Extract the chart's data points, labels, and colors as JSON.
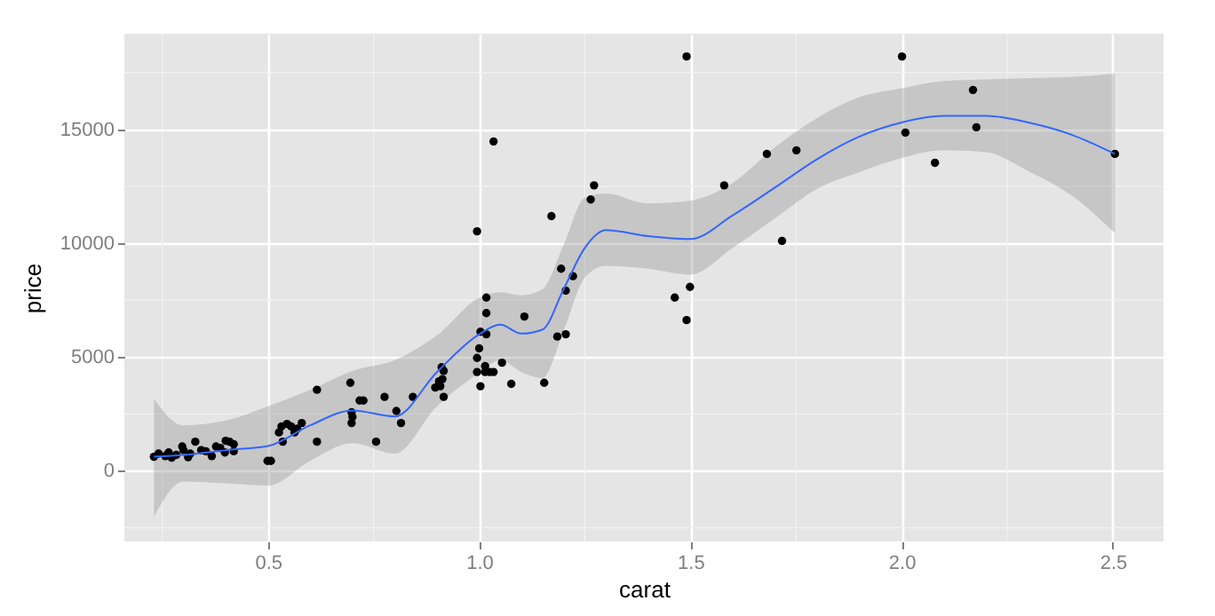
{
  "chart_data": {
    "type": "scatter",
    "xlabel": "carat",
    "ylabel": "price",
    "xlim": [
      0.16,
      2.62
    ],
    "ylim": [
      -3100,
      19200
    ],
    "xticks": [
      0.5,
      {
        "value": 1,
        "label": "1.0"
      },
      1.5,
      {
        "value": 2,
        "label": "2.0"
      },
      2.5
    ],
    "yticks": [
      0,
      5000,
      10000,
      15000
    ],
    "grid": true,
    "marker": "circle",
    "series": [
      {
        "color": "#000000",
        "x": [
          0.23,
          0.241,
          0.257,
          0.265,
          0.272,
          0.283,
          0.297,
          0.3,
          0.311,
          0.316,
          0.328,
          0.342,
          0.353,
          0.367,
          0.377,
          0.387,
          0.398,
          0.4,
          0.409,
          0.419,
          0.419,
          0.499,
          0.507,
          0.526,
          0.535,
          0.532,
          0.545,
          0.555,
          0.563,
          0.569,
          0.58,
          0.616,
          0.616,
          0.695,
          0.698,
          0.7,
          0.698,
          0.717,
          0.726,
          0.756,
          0.776,
          0.804,
          0.815,
          0.843,
          0.896,
          0.905,
          0.911,
          0.916,
          0.913,
          0.916,
          0.908,
          0.995,
          0.995,
          1.0,
          1.003,
          1.003,
          1.014,
          1.017,
          1.017,
          1.017,
          1.014,
          1.025,
          1.034,
          1.054,
          1.076,
          1.107,
          0.995,
          1.034,
          1.171,
          1.264,
          1.272,
          1.194,
          1.205,
          1.222,
          1.185,
          1.205,
          1.154,
          1.463,
          1.499,
          1.491,
          1.491,
          2.001,
          2.169,
          2.177,
          2.009,
          2.079,
          1.681,
          1.751,
          1.58,
          1.717,
          2.505
        ],
        "values": [
          620,
          760,
          650,
          810,
          580,
          700,
          1070,
          910,
          600,
          760,
          1280,
          910,
          860,
          650,
          1070,
          1010,
          810,
          1320,
          1280,
          1170,
          860,
          440,
          440,
          1690,
          1280,
          1950,
          2060,
          1950,
          1690,
          1850,
          2100,
          1280,
          3560,
          3870,
          2570,
          2370,
          2100,
          3090,
          3090,
          1280,
          3250,
          2630,
          2100,
          3250,
          3660,
          3930,
          4550,
          4390,
          4030,
          3250,
          3720,
          4960,
          4340,
          5380,
          6110,
          3720,
          4600,
          6930,
          6000,
          7610,
          4340,
          4340,
          4340,
          4750,
          3820,
          6780,
          10520,
          14470,
          11190,
          11920,
          12540,
          8880,
          7920,
          8550,
          5900,
          6000,
          3870,
          7610,
          8080,
          6620,
          18200,
          18200,
          16730,
          15090,
          14860,
          13530,
          13920,
          14080,
          12540,
          10100,
          13920
        ]
      },
      {
        "type": "line",
        "marker": "none",
        "color": "#3366ff",
        "x": [
          0.23,
          0.3,
          0.4,
          0.5,
          0.6,
          0.7,
          0.8,
          0.9,
          1.0,
          1.05,
          1.1,
          1.15,
          1.2,
          1.25,
          1.3,
          1.4,
          1.5,
          1.6,
          1.7,
          1.8,
          1.9,
          2.0,
          2.1,
          2.2,
          2.3,
          2.4,
          2.505
        ],
        "values": [
          620,
          700,
          910,
          1090,
          2000,
          2650,
          2390,
          4340,
          6000,
          6420,
          6030,
          6210,
          7980,
          9790,
          10570,
          10310,
          10180,
          11220,
          12440,
          13690,
          14680,
          15300,
          15590,
          15590,
          15300,
          14780,
          13920
        ],
        "lower": [
          -2030,
          -470,
          -550,
          -650,
          440,
          1220,
          760,
          2840,
          4300,
          4860,
          4340,
          4080,
          6150,
          8490,
          9010,
          8880,
          8620,
          9790,
          11090,
          12390,
          13120,
          13740,
          14080,
          14000,
          13170,
          12130,
          10440
        ],
        "upper": [
          3170,
          2000,
          2210,
          2840,
          3560,
          4390,
          4860,
          5950,
          7600,
          7850,
          7710,
          7980,
          9930,
          12000,
          12180,
          11740,
          11870,
          12650,
          14210,
          15500,
          16410,
          16800,
          17120,
          17190,
          17250,
          17300,
          17450
        ]
      }
    ]
  }
}
